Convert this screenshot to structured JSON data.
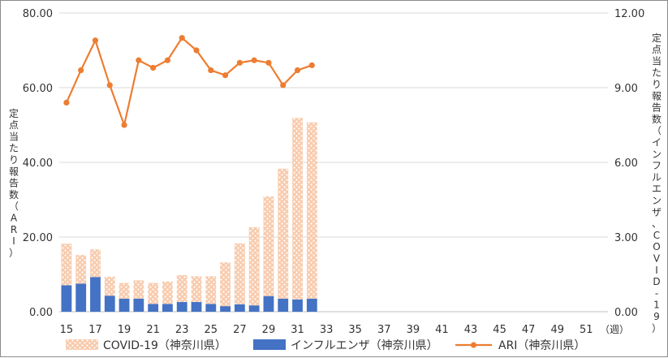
{
  "chart_data": {
    "type": "bar",
    "x_unit_label": "（週）",
    "y_left_label": "定点当たり報告数（ARI）",
    "y_right_label": "定点当たり報告数（インフルエンザ、COVID-19）",
    "y_left_ticks": [
      "0.00",
      "20.00",
      "40.00",
      "60.00",
      "80.00"
    ],
    "y_right_ticks": [
      "0.00",
      "3.00",
      "6.00",
      "9.00",
      "12.00"
    ],
    "ylim_left": [
      0,
      80
    ],
    "ylim_right": [
      0,
      12
    ],
    "grid": true,
    "legend_position": "bottom",
    "x_tick_labels": [
      "15",
      "17",
      "19",
      "21",
      "23",
      "25",
      "27",
      "29",
      "31",
      "33",
      "35",
      "37",
      "39",
      "41",
      "43",
      "45",
      "47",
      "49",
      "51"
    ],
    "weeks": [
      15,
      16,
      17,
      18,
      19,
      20,
      21,
      22,
      23,
      24,
      25,
      26,
      27,
      28,
      29,
      30,
      31,
      32,
      33,
      34,
      35,
      36,
      37,
      38,
      39,
      40,
      41,
      42,
      43,
      44,
      45,
      46,
      47,
      48,
      49,
      50,
      51,
      52
    ],
    "series": [
      {
        "name": "COVID-19（神奈川県）",
        "type": "stacked-bar",
        "axis": "left",
        "color": "#f4b183",
        "pattern": "dots",
        "values": [
          11.1,
          7.7,
          7.4,
          5.1,
          4.2,
          4.9,
          5.6,
          6.0,
          7.2,
          6.9,
          7.4,
          11.7,
          16.3,
          20.9,
          26.7,
          34.8,
          48.6,
          47.2,
          null,
          null,
          null,
          null,
          null,
          null,
          null,
          null,
          null,
          null,
          null,
          null,
          null,
          null,
          null,
          null,
          null,
          null,
          null,
          null
        ]
      },
      {
        "name": "インフルエンザ（神奈川県）",
        "type": "stacked-bar",
        "axis": "left",
        "color": "#4472c4",
        "values": [
          7.1,
          7.5,
          9.3,
          4.3,
          3.5,
          3.5,
          2.1,
          2.1,
          2.6,
          2.6,
          2.1,
          1.5,
          2.0,
          1.7,
          4.2,
          3.5,
          3.3,
          3.5,
          null,
          null,
          null,
          null,
          null,
          null,
          null,
          null,
          null,
          null,
          null,
          null,
          null,
          null,
          null,
          null,
          null,
          null,
          null,
          null
        ]
      },
      {
        "name": "ARI（神奈川県）",
        "type": "line",
        "axis": "right",
        "color": "#ed7d31",
        "values": [
          8.4,
          9.7,
          10.9,
          9.1,
          7.5,
          10.1,
          9.8,
          10.1,
          11.0,
          10.5,
          9.7,
          9.5,
          10.0,
          10.1,
          10.0,
          9.1,
          9.7,
          9.9,
          null,
          null,
          null,
          null,
          null,
          null,
          null,
          null,
          null,
          null,
          null,
          null,
          null,
          null,
          null,
          null,
          null,
          null,
          null,
          null
        ]
      }
    ]
  }
}
